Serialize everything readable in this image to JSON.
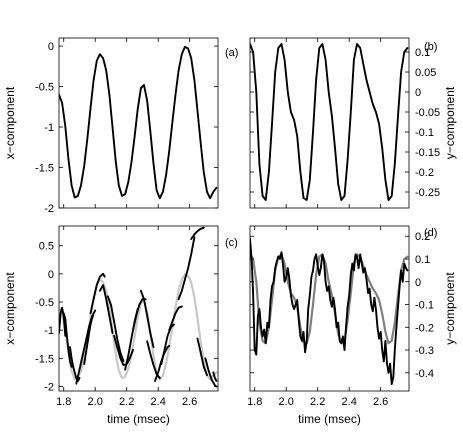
{
  "chart_data": [
    {
      "panel": "(a)",
      "type": "line",
      "xlim": [
        1.77,
        2.78
      ],
      "ylim": [
        -2,
        0.1
      ],
      "ylabel": "x−component",
      "yticks": [
        "0",
        "-0.5",
        "-1",
        "-1.5",
        "-2"
      ],
      "series": [
        {
          "color": "#000000",
          "x": [
            1.77,
            1.79,
            1.81,
            1.83,
            1.85,
            1.87,
            1.89,
            1.91,
            1.93,
            1.95,
            1.97,
            1.99,
            2.01,
            2.03,
            2.05,
            2.07,
            2.09,
            2.11,
            2.13,
            2.15,
            2.17,
            2.19,
            2.21,
            2.23,
            2.25,
            2.27,
            2.29,
            2.31,
            2.33,
            2.35,
            2.37,
            2.39,
            2.41,
            2.43,
            2.45,
            2.47,
            2.49,
            2.51,
            2.53,
            2.55,
            2.57,
            2.59,
            2.61,
            2.63,
            2.65,
            2.67,
            2.69,
            2.71,
            2.73,
            2.75,
            2.77
          ],
          "y": [
            -0.6,
            -0.7,
            -0.99,
            -1.39,
            -1.72,
            -1.87,
            -1.85,
            -1.72,
            -1.48,
            -1.15,
            -0.77,
            -0.42,
            -0.18,
            -0.1,
            -0.15,
            -0.3,
            -0.6,
            -1.0,
            -1.42,
            -1.72,
            -1.85,
            -1.83,
            -1.68,
            -1.44,
            -1.12,
            -0.78,
            -0.52,
            -0.48,
            -0.68,
            -1.05,
            -1.45,
            -1.78,
            -1.88,
            -1.8,
            -1.6,
            -1.3,
            -0.95,
            -0.6,
            -0.3,
            -0.1,
            -0.01,
            -0.03,
            -0.15,
            -0.42,
            -0.8,
            -1.2,
            -1.56,
            -1.8,
            -1.88,
            -1.8,
            -1.75
          ]
        }
      ]
    },
    {
      "panel": "(b)",
      "type": "line",
      "xlim": [
        1.77,
        2.78
      ],
      "ylim": [
        -0.29,
        0.135
      ],
      "ylabel": "y−component",
      "yticks": [
        "0.1",
        "0.05",
        "0",
        "-0.05",
        "-0.1",
        "-0.15",
        "-0.2",
        "-0.25"
      ],
      "series": [
        {
          "color": "#000000",
          "x": [
            1.77,
            1.79,
            1.81,
            1.83,
            1.85,
            1.87,
            1.89,
            1.91,
            1.93,
            1.95,
            1.97,
            1.99,
            2.01,
            2.03,
            2.05,
            2.07,
            2.09,
            2.11,
            2.13,
            2.15,
            2.17,
            2.19,
            2.21,
            2.23,
            2.25,
            2.27,
            2.29,
            2.31,
            2.33,
            2.35,
            2.37,
            2.39,
            2.41,
            2.43,
            2.45,
            2.47,
            2.49,
            2.51,
            2.53,
            2.55,
            2.57,
            2.59,
            2.61,
            2.63,
            2.65,
            2.67,
            2.69,
            2.71,
            2.73,
            2.75,
            2.77
          ],
          "y": [
            0.12,
            0.1,
            0.0,
            -0.18,
            -0.26,
            -0.27,
            -0.2,
            -0.08,
            0.05,
            0.11,
            0.12,
            0.08,
            0.0,
            -0.05,
            -0.07,
            -0.11,
            -0.2,
            -0.265,
            -0.27,
            -0.22,
            -0.1,
            0.03,
            0.11,
            0.12,
            0.08,
            0.0,
            -0.06,
            -0.14,
            -0.23,
            -0.27,
            -0.26,
            -0.17,
            -0.05,
            0.08,
            0.12,
            0.11,
            0.07,
            0.03,
            0.0,
            -0.03,
            -0.05,
            -0.08,
            -0.14,
            -0.22,
            -0.27,
            -0.26,
            -0.18,
            -0.06,
            0.05,
            0.1,
            0.11
          ]
        }
      ]
    },
    {
      "panel": "(c)",
      "type": "line",
      "xlim": [
        1.77,
        2.78
      ],
      "ylim": [
        -2.08,
        0.85
      ],
      "xlabel": "time (msec)",
      "ylabel": "x−component",
      "xticks": [
        "1.8",
        "2.0",
        "2.2",
        "2.4",
        "2.6"
      ],
      "yticks": [
        "0.5",
        "0",
        "-0.5",
        "-1",
        "-1.5",
        "-2"
      ],
      "series": [
        {
          "color": "#c8c8c8",
          "x": [
            1.77,
            1.79,
            1.81,
            1.83,
            1.85,
            1.87,
            1.89,
            1.91,
            1.93,
            1.95,
            1.97,
            1.99,
            2.01,
            2.03,
            2.05,
            2.07,
            2.09,
            2.11,
            2.13,
            2.15,
            2.17,
            2.19,
            2.21,
            2.23,
            2.25,
            2.27,
            2.29,
            2.31,
            2.33,
            2.35,
            2.37,
            2.39,
            2.41,
            2.43,
            2.45,
            2.47,
            2.49,
            2.51,
            2.53,
            2.55,
            2.57,
            2.59,
            2.61,
            2.63,
            2.65,
            2.67,
            2.69,
            2.71,
            2.73,
            2.75,
            2.77
          ],
          "y": [
            -0.6,
            -0.7,
            -0.99,
            -1.39,
            -1.72,
            -1.87,
            -1.85,
            -1.72,
            -1.48,
            -1.15,
            -0.77,
            -0.42,
            -0.18,
            -0.1,
            -0.15,
            -0.3,
            -0.6,
            -1.0,
            -1.42,
            -1.72,
            -1.85,
            -1.83,
            -1.68,
            -1.44,
            -1.12,
            -0.78,
            -0.52,
            -0.48,
            -0.68,
            -1.05,
            -1.45,
            -1.78,
            -1.88,
            -1.8,
            -1.6,
            -1.3,
            -0.95,
            -0.6,
            -0.3,
            -0.1,
            -0.01,
            -0.03,
            -0.15,
            -0.42,
            -0.8,
            -1.2,
            -1.56,
            -1.8,
            -1.88,
            -1.8,
            -1.75
          ]
        },
        {
          "color": "#000000",
          "x": [
            1.77,
            1.78,
            1.79,
            1.8,
            1.81
          ],
          "y": [
            -1.05,
            -0.7,
            -0.6,
            -0.75,
            -1.1
          ]
        },
        {
          "color": "#000000",
          "x": [
            1.8,
            1.81,
            1.82,
            1.83,
            1.84,
            1.85
          ],
          "y": [
            -0.7,
            -0.8,
            -1.1,
            -1.35,
            -1.55,
            -1.65
          ]
        },
        {
          "color": "#000000",
          "x": [
            1.84,
            1.85,
            1.86,
            1.87,
            1.88,
            1.89,
            1.9
          ],
          "y": [
            -1.3,
            -1.5,
            -1.65,
            -1.75,
            -1.85,
            -1.9,
            -1.85
          ]
        },
        {
          "color": "#000000",
          "x": [
            1.88,
            1.9,
            1.92,
            1.94,
            1.96,
            1.98
          ],
          "y": [
            -1.95,
            -1.7,
            -1.45,
            -1.2,
            -0.95,
            -0.75
          ]
        },
        {
          "color": "#000000",
          "x": [
            1.93,
            1.95,
            1.97,
            1.99,
            2.0
          ],
          "y": [
            -1.6,
            -1.25,
            -0.9,
            -0.7,
            -0.65
          ]
        },
        {
          "color": "#000000",
          "x": [
            1.97,
            1.99,
            2.01,
            2.03,
            2.05,
            2.06
          ],
          "y": [
            -0.7,
            -0.45,
            -0.2,
            -0.05,
            0.0,
            -0.05
          ]
        },
        {
          "color": "#000000",
          "x": [
            2.03,
            2.05,
            2.07,
            2.09,
            2.11
          ],
          "y": [
            -0.3,
            -0.2,
            -0.45,
            -0.75,
            -1.05
          ]
        },
        {
          "color": "#000000",
          "x": [
            2.08,
            2.1,
            2.12,
            2.14,
            2.16,
            2.18
          ],
          "y": [
            -0.4,
            -0.55,
            -0.85,
            -1.15,
            -1.4,
            -1.55
          ]
        },
        {
          "color": "#000000",
          "x": [
            2.12,
            2.14,
            2.16,
            2.18,
            2.2,
            2.22,
            2.24
          ],
          "y": [
            -1.1,
            -1.3,
            -1.5,
            -1.62,
            -1.6,
            -1.5,
            -1.35
          ]
        },
        {
          "color": "#000000",
          "x": [
            2.19,
            2.21,
            2.23,
            2.25,
            2.27
          ],
          "y": [
            -1.7,
            -1.45,
            -1.15,
            -0.85,
            -0.62
          ]
        },
        {
          "color": "#000000",
          "x": [
            2.24,
            2.26,
            2.28,
            2.3,
            2.32
          ],
          "y": [
            -1.0,
            -0.75,
            -0.55,
            -0.45,
            -0.45
          ]
        },
        {
          "color": "#000000",
          "x": [
            2.29,
            2.31,
            2.33,
            2.35,
            2.37
          ],
          "y": [
            -0.3,
            -0.45,
            -0.75,
            -1.05,
            -1.3
          ]
        },
        {
          "color": "#000000",
          "x": [
            2.33,
            2.35,
            2.37,
            2.39,
            2.41
          ],
          "y": [
            -1.2,
            -1.42,
            -1.62,
            -1.78,
            -1.85
          ]
        },
        {
          "color": "#000000",
          "x": [
            2.38,
            2.4,
            2.42,
            2.44,
            2.46,
            2.47
          ],
          "y": [
            -1.9,
            -1.75,
            -1.55,
            -1.4,
            -1.3,
            -1.28
          ]
        },
        {
          "color": "#000000",
          "x": [
            2.42,
            2.44,
            2.46,
            2.48,
            2.5
          ],
          "y": [
            -1.6,
            -1.35,
            -1.1,
            -0.95,
            -0.9
          ]
        },
        {
          "color": "#000000",
          "x": [
            2.47,
            2.49,
            2.51,
            2.53,
            2.55
          ],
          "y": [
            -1.0,
            -0.85,
            -0.7,
            -0.6,
            -0.58
          ]
        },
        {
          "color": "#000000",
          "x": [
            2.53,
            2.55,
            2.57,
            2.59,
            2.61,
            2.63
          ],
          "y": [
            -0.45,
            -0.3,
            -0.1,
            0.1,
            0.35,
            0.65
          ]
        },
        {
          "color": "#000000",
          "x": [
            2.61,
            2.63,
            2.65,
            2.67,
            2.69
          ],
          "y": [
            0.62,
            0.7,
            0.76,
            0.8,
            0.82
          ]
        },
        {
          "color": "#000000",
          "x": [
            2.65,
            2.67,
            2.69,
            2.71
          ],
          "y": [
            -1.15,
            -1.4,
            -1.65,
            -1.8
          ]
        },
        {
          "color": "#000000",
          "x": [
            2.7,
            2.72,
            2.74,
            2.76,
            2.77
          ],
          "y": [
            -1.5,
            -1.72,
            -1.88,
            -1.98,
            -2.0
          ]
        },
        {
          "color": "#000000",
          "x": [
            2.75,
            2.76,
            2.77
          ],
          "y": [
            -1.75,
            -1.85,
            -1.9
          ]
        }
      ]
    },
    {
      "panel": "(d)",
      "type": "line",
      "xlim": [
        1.77,
        2.78
      ],
      "ylim": [
        -0.48,
        0.245
      ],
      "xlabel": "time (msec)",
      "ylabel": "y−component",
      "xticks": [
        "1.8",
        "2.0",
        "2.2",
        "2.4",
        "2.6"
      ],
      "yticks": [
        "0.2",
        "0.1",
        "0",
        "-0.1",
        "-0.2",
        "-0.3",
        "-0.4"
      ],
      "series": [
        {
          "color": "#808080",
          "x": [
            1.77,
            1.79,
            1.81,
            1.83,
            1.85,
            1.87,
            1.89,
            1.91,
            1.93,
            1.95,
            1.97,
            1.99,
            2.01,
            2.03,
            2.05,
            2.07,
            2.09,
            2.11,
            2.13,
            2.15,
            2.17,
            2.19,
            2.21,
            2.23,
            2.25,
            2.27,
            2.29,
            2.31,
            2.33,
            2.35,
            2.37,
            2.39,
            2.41,
            2.43,
            2.45,
            2.47,
            2.49,
            2.51,
            2.53,
            2.55,
            2.57,
            2.59,
            2.61,
            2.63,
            2.65,
            2.67,
            2.69,
            2.71,
            2.73,
            2.75,
            2.77
          ],
          "y": [
            0.12,
            0.1,
            0.0,
            -0.18,
            -0.26,
            -0.27,
            -0.2,
            -0.08,
            0.05,
            0.11,
            0.12,
            0.08,
            0.0,
            -0.05,
            -0.07,
            -0.11,
            -0.2,
            -0.265,
            -0.27,
            -0.22,
            -0.1,
            0.03,
            0.11,
            0.12,
            0.08,
            0.0,
            -0.06,
            -0.14,
            -0.23,
            -0.27,
            -0.26,
            -0.17,
            -0.05,
            0.08,
            0.12,
            0.11,
            0.07,
            0.03,
            0.0,
            -0.03,
            -0.05,
            -0.08,
            -0.14,
            -0.22,
            -0.27,
            -0.26,
            -0.18,
            -0.06,
            0.05,
            0.1,
            0.11
          ]
        },
        {
          "color": "#000000",
          "x": [
            1.77,
            1.78,
            1.79,
            1.8,
            1.81,
            1.82,
            1.83,
            1.84,
            1.85,
            1.86,
            1.87,
            1.88,
            1.89,
            1.9,
            1.91,
            1.92,
            1.93,
            1.94,
            1.95,
            1.96,
            1.97,
            1.98,
            1.99,
            2.0,
            2.01,
            2.02,
            2.03,
            2.04,
            2.05,
            2.06,
            2.07,
            2.08,
            2.09,
            2.1,
            2.11,
            2.12,
            2.13,
            2.14,
            2.15,
            2.16,
            2.17,
            2.18,
            2.19,
            2.2,
            2.21,
            2.22,
            2.23,
            2.24,
            2.25,
            2.26,
            2.27,
            2.28,
            2.29,
            2.3,
            2.31,
            2.32,
            2.33,
            2.34,
            2.35,
            2.36,
            2.37,
            2.38,
            2.39,
            2.4,
            2.41,
            2.42,
            2.43,
            2.44,
            2.45,
            2.46,
            2.47,
            2.48,
            2.49,
            2.5,
            2.51,
            2.52,
            2.53,
            2.54,
            2.55,
            2.56,
            2.57,
            2.58,
            2.59,
            2.6,
            2.61,
            2.62,
            2.63,
            2.64,
            2.65,
            2.66,
            2.67,
            2.68,
            2.69,
            2.7,
            2.71,
            2.72,
            2.73,
            2.74,
            2.75,
            2.76,
            2.77
          ],
          "y": [
            0.19,
            0.1,
            -0.05,
            -0.3,
            -0.32,
            -0.15,
            -0.12,
            -0.2,
            -0.24,
            -0.21,
            -0.27,
            -0.18,
            -0.2,
            -0.08,
            -0.02,
            0.0,
            0.06,
            0.09,
            0.11,
            0.1,
            0.13,
            0.07,
            0.0,
            0.02,
            0.06,
            0.01,
            -0.06,
            -0.1,
            -0.12,
            -0.1,
            -0.08,
            -0.17,
            -0.24,
            -0.26,
            -0.22,
            -0.31,
            -0.26,
            -0.12,
            -0.06,
            0.02,
            0.05,
            0.1,
            0.12,
            0.07,
            0.03,
            0.06,
            0.12,
            0.09,
            0.0,
            -0.04,
            -0.02,
            -0.08,
            -0.11,
            -0.07,
            -0.12,
            -0.2,
            -0.18,
            -0.26,
            -0.27,
            -0.24,
            -0.3,
            -0.2,
            -0.11,
            -0.06,
            0.03,
            0.08,
            0.05,
            0.12,
            0.11,
            0.06,
            0.12,
            0.08,
            0.04,
            0.06,
            0.01,
            -0.05,
            -0.03,
            -0.1,
            -0.13,
            -0.07,
            -0.12,
            -0.2,
            -0.25,
            -0.22,
            -0.3,
            -0.35,
            -0.26,
            -0.36,
            -0.4,
            -0.36,
            -0.45,
            -0.42,
            -0.3,
            -0.2,
            -0.11,
            -0.02,
            0.05,
            0.0,
            0.08,
            0.06,
            0.05
          ]
        }
      ]
    }
  ]
}
